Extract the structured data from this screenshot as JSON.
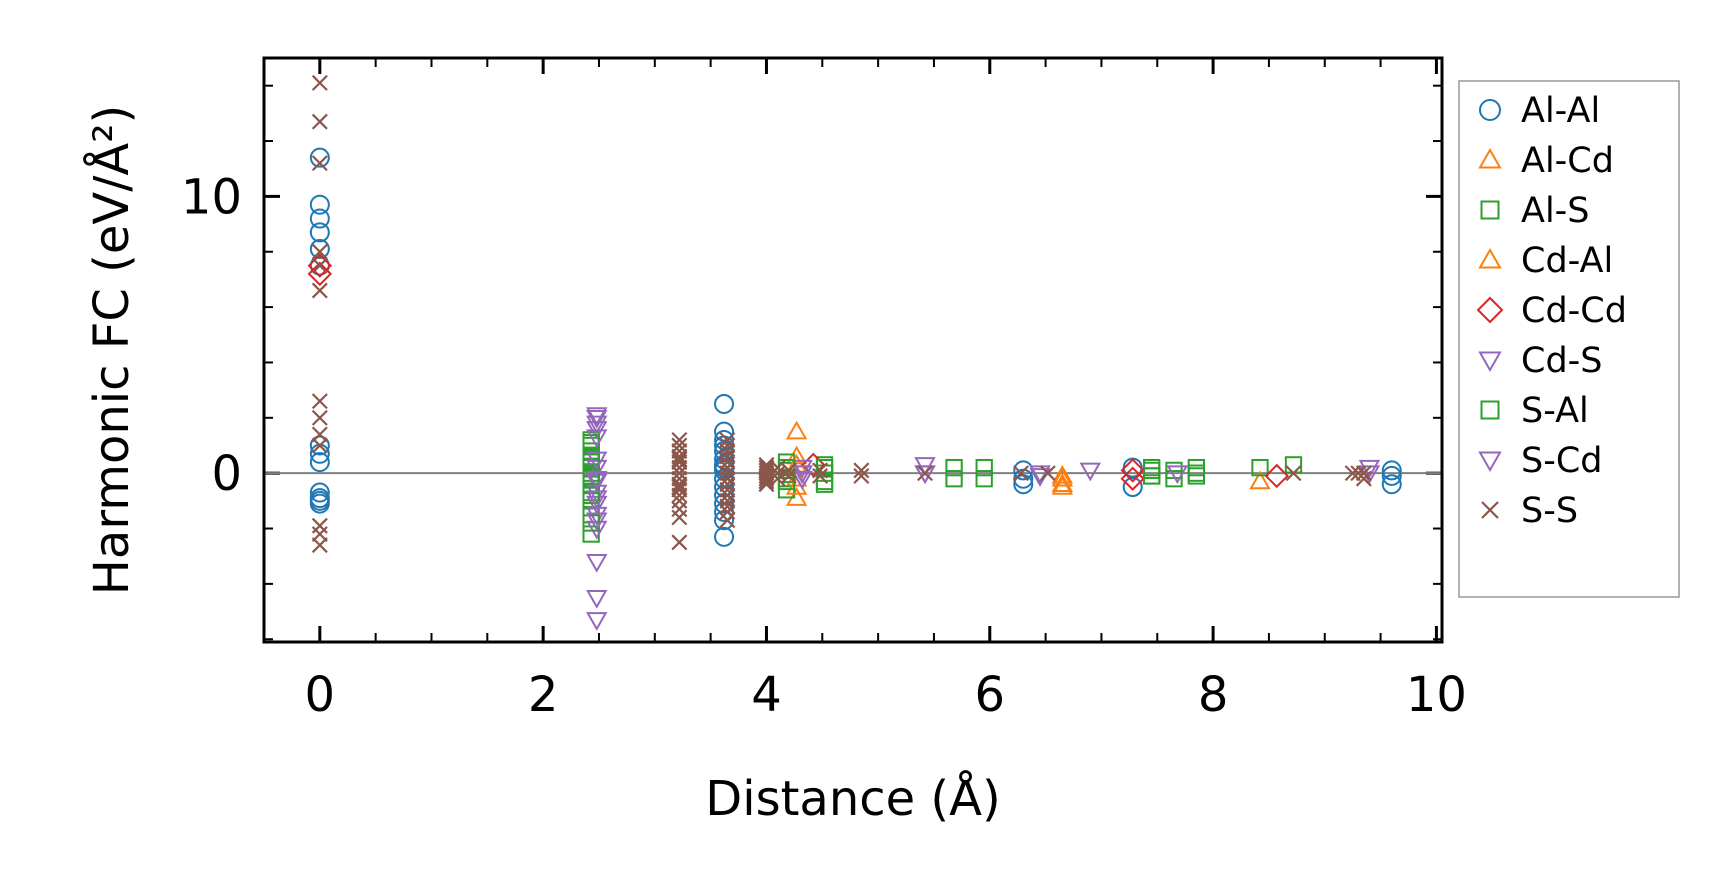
{
  "chart_data": {
    "type": "scatter",
    "title": "",
    "xlabel": "Distance (Å)",
    "ylabel": "Harmonic FC (eV/Å²)",
    "xlim": [
      -0.5,
      10.05
    ],
    "ylim": [
      -6.1,
      15.0
    ],
    "xticks": [
      0,
      2,
      4,
      6,
      8,
      10
    ],
    "xtick_labels": [
      "0",
      "2",
      "4",
      "6",
      "8",
      "10"
    ],
    "yticks": [
      0,
      10
    ],
    "ytick_labels": [
      "0",
      "10"
    ],
    "hline_y": 0,
    "grid": false,
    "legend_position": "right, outside plot area",
    "series": [
      {
        "name": "Al-Al",
        "marker": "circle",
        "color": "#1f77b4",
        "x": [
          0,
          0,
          0,
          0,
          0,
          0,
          0,
          0,
          0,
          0,
          0,
          0,
          0,
          3.62,
          3.62,
          3.62,
          3.62,
          3.62,
          3.62,
          3.62,
          3.62,
          3.62,
          3.62,
          3.62,
          3.62,
          3.62,
          3.62,
          3.62,
          3.62,
          6.3,
          6.3,
          6.3,
          7.28,
          7.28,
          9.6,
          9.6,
          9.6
        ],
        "y": [
          11.4,
          9.7,
          9.2,
          8.7,
          8.1,
          7.5,
          1.0,
          0.7,
          0.4,
          -0.7,
          -0.9,
          -1.0,
          -1.1,
          2.5,
          1.5,
          1.2,
          1.0,
          0.8,
          0.5,
          0.3,
          0.1,
          -0.2,
          -0.5,
          -0.8,
          -1.1,
          -1.4,
          -2.3,
          -1.7,
          0.2,
          0.1,
          -0.2,
          -0.4,
          0.2,
          -0.5,
          0.1,
          -0.1,
          -0.4
        ]
      },
      {
        "name": "Al-Cd",
        "marker": "triangle-up",
        "color": "#ff7f0e",
        "x": [
          4.27,
          4.27,
          4.27,
          4.27,
          6.65,
          6.65,
          8.42
        ],
        "y": [
          1.5,
          0.6,
          -0.2,
          -0.9,
          -0.2,
          -0.5,
          -0.3
        ]
      },
      {
        "name": "Al-S",
        "marker": "square",
        "color": "#2ca02c",
        "x": [
          2.43,
          2.43,
          2.43,
          2.43,
          2.43,
          2.43,
          2.43,
          2.43,
          2.43,
          2.43,
          2.43,
          2.43,
          2.43,
          4.18,
          4.18,
          4.18,
          4.18,
          4.52,
          4.52,
          4.52,
          5.68,
          5.68,
          5.95,
          5.95,
          7.45,
          7.45,
          7.65,
          7.65,
          7.85,
          7.85,
          8.42,
          8.72
        ],
        "y": [
          1.2,
          1.0,
          0.8,
          0.6,
          0.4,
          0.2,
          0.0,
          -0.2,
          -0.4,
          -0.7,
          -1.0,
          -1.5,
          -2.2,
          0.4,
          0.1,
          -0.2,
          -0.6,
          0.3,
          0.0,
          -0.4,
          0.2,
          -0.2,
          0.2,
          -0.2,
          0.2,
          -0.1,
          0.1,
          -0.2,
          0.2,
          -0.1,
          0.2,
          0.3
        ]
      },
      {
        "name": "Cd-Al",
        "marker": "triangle-up",
        "color": "#ff7f0e",
        "x": [
          4.27,
          4.27,
          6.65,
          6.65
        ],
        "y": [
          0.3,
          -0.5,
          -0.1,
          -0.4
        ]
      },
      {
        "name": "Cd-Cd",
        "marker": "diamond",
        "color": "#d62728",
        "x": [
          0,
          0,
          4.42,
          7.28,
          7.28,
          8.57
        ],
        "y": [
          7.5,
          7.2,
          0.3,
          0.1,
          -0.2,
          -0.1
        ]
      },
      {
        "name": "Cd-S",
        "marker": "triangle-down",
        "color": "#9467bd",
        "x": [
          2.48,
          2.48,
          2.48,
          2.48,
          2.48,
          2.48,
          2.48,
          2.48,
          2.48,
          2.48,
          4.32,
          4.32,
          4.32,
          5.42,
          5.42,
          6.45,
          6.9,
          7.68,
          9.4
        ],
        "y": [
          2.0,
          1.8,
          1.6,
          0.2,
          -0.3,
          -0.7,
          -1.1,
          -1.5,
          -2.0,
          -3.2,
          0.2,
          0.0,
          -0.2,
          0.3,
          0.0,
          0.0,
          0.1,
          0.0,
          0.2
        ]
      },
      {
        "name": "S-Al",
        "marker": "square",
        "color": "#2ca02c",
        "x": [
          2.43,
          2.43,
          2.43,
          2.43,
          2.43,
          4.18,
          4.18,
          4.52,
          4.52,
          7.45,
          7.45,
          7.85
        ],
        "y": [
          1.1,
          0.5,
          -0.1,
          -0.8,
          -1.8,
          0.2,
          -0.3,
          0.2,
          -0.3,
          0.1,
          -0.1,
          0.0
        ]
      },
      {
        "name": "S-Cd",
        "marker": "triangle-down",
        "color": "#9467bd",
        "x": [
          2.48,
          2.48,
          2.48,
          2.48,
          2.48,
          2.48,
          2.48,
          2.48,
          4.32,
          5.42,
          6.45,
          9.4
        ],
        "y": [
          2.1,
          1.3,
          0.5,
          -0.2,
          -0.9,
          -1.7,
          -4.5,
          -5.3,
          0.0,
          0.0,
          -0.1,
          0.0
        ]
      },
      {
        "name": "S-S",
        "marker": "x",
        "color": "#8c564b",
        "x": [
          0,
          0,
          0,
          0,
          0,
          0,
          0,
          0,
          0,
          0,
          0,
          0,
          0,
          3.22,
          3.22,
          3.22,
          3.22,
          3.22,
          3.22,
          3.22,
          3.22,
          3.22,
          3.22,
          3.22,
          3.22,
          3.22,
          3.22,
          3.22,
          3.22,
          3.22,
          3.65,
          3.65,
          3.65,
          3.65,
          3.65,
          3.65,
          3.65,
          3.65,
          3.65,
          3.65,
          3.65,
          3.65,
          3.65,
          3.65,
          3.65,
          4.0,
          4.0,
          4.0,
          4.0,
          4.0,
          4.0,
          4.0,
          4.0,
          4.1,
          4.1,
          4.1,
          4.2,
          4.2,
          4.48,
          4.48,
          4.85,
          4.85,
          5.42,
          6.28,
          6.52,
          8.72,
          9.25,
          9.3,
          9.35,
          9.35
        ],
        "y": [
          14.1,
          12.7,
          11.2,
          8.0,
          7.5,
          6.6,
          2.6,
          2.0,
          1.4,
          1.0,
          -1.9,
          -2.2,
          -2.6,
          1.2,
          1.0,
          0.8,
          0.6,
          0.4,
          0.2,
          0.0,
          -0.2,
          -0.4,
          -0.6,
          -0.8,
          -1.0,
          -1.3,
          -1.6,
          -2.5,
          0.5,
          -0.5,
          1.2,
          1.0,
          0.8,
          0.6,
          0.4,
          0.2,
          0.0,
          -0.2,
          -0.4,
          -0.6,
          -0.8,
          -1.0,
          -1.2,
          -1.4,
          -1.7,
          0.3,
          0.1,
          -0.1,
          -0.3,
          0.2,
          0.0,
          -0.2,
          -0.4,
          0.2,
          0.0,
          -0.2,
          0.1,
          -0.1,
          0.1,
          -0.1,
          0.1,
          -0.1,
          0.0,
          0.0,
          0.0,
          0.0,
          0.0,
          0.0,
          0.0,
          -0.2
        ]
      }
    ]
  }
}
